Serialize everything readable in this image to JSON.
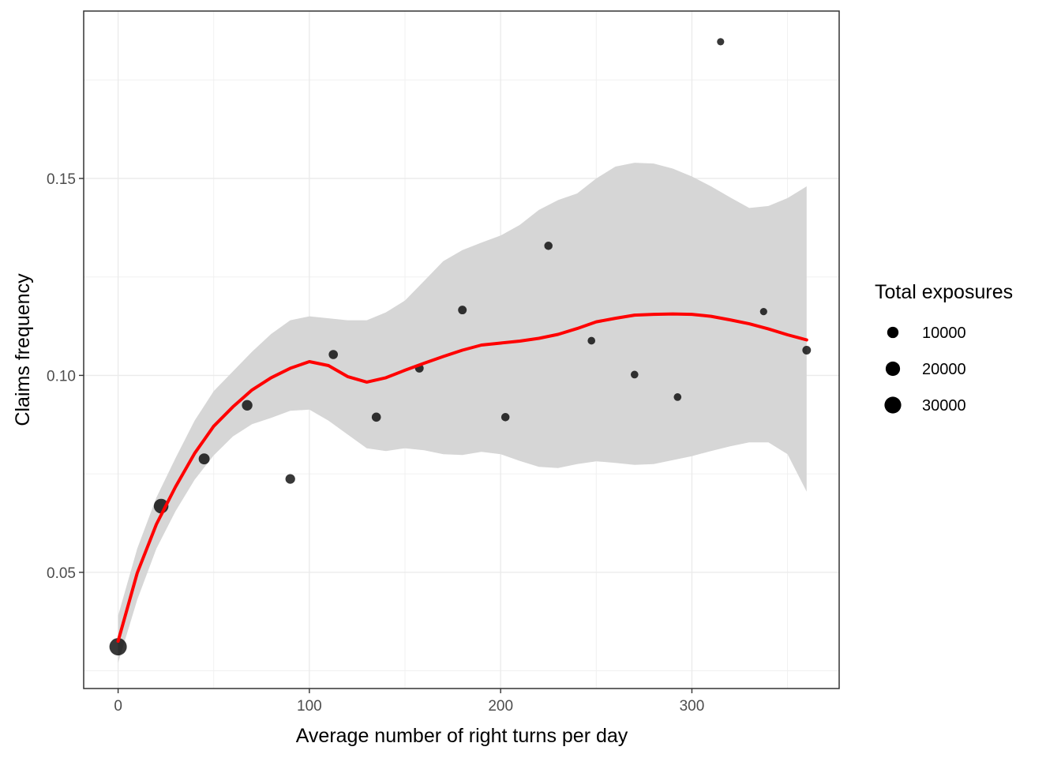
{
  "chart_data": {
    "type": "scatter",
    "title": "",
    "xlabel": "Average number of right turns per day",
    "ylabel": "Claims frequency",
    "xlim": [
      -18,
      377
    ],
    "ylim": [
      0.0205,
      0.1925
    ],
    "x_ticks": [
      0,
      100,
      200,
      300
    ],
    "x_tick_labels": [
      "0",
      "100",
      "200",
      "300"
    ],
    "y_ticks": [
      0.05,
      0.1,
      0.15
    ],
    "y_tick_labels": [
      "0.05",
      "0.10",
      "0.15"
    ],
    "grid": true,
    "legend": {
      "title": "Total exposures",
      "position": "right",
      "entries": [
        {
          "label": "10000",
          "size": 10000
        },
        {
          "label": "20000",
          "size": 20000
        },
        {
          "label": "30000",
          "size": 30000
        }
      ]
    },
    "points": [
      {
        "x": 0,
        "y": 0.0311,
        "exposure": 33000
      },
      {
        "x": 22.5,
        "y": 0.0668,
        "exposure": 21000
      },
      {
        "x": 45,
        "y": 0.0788,
        "exposure": 9000
      },
      {
        "x": 67.5,
        "y": 0.0924,
        "exposure": 8000
      },
      {
        "x": 90,
        "y": 0.0737,
        "exposure": 6000
      },
      {
        "x": 112.5,
        "y": 0.1053,
        "exposure": 5000
      },
      {
        "x": 135,
        "y": 0.0894,
        "exposure": 5000
      },
      {
        "x": 157.5,
        "y": 0.1018,
        "exposure": 4000
      },
      {
        "x": 180,
        "y": 0.1166,
        "exposure": 4000
      },
      {
        "x": 202.5,
        "y": 0.0894,
        "exposure": 3500
      },
      {
        "x": 225,
        "y": 0.1329,
        "exposure": 3500
      },
      {
        "x": 247.5,
        "y": 0.1088,
        "exposure": 2500
      },
      {
        "x": 270,
        "y": 0.1002,
        "exposure": 2500
      },
      {
        "x": 292.5,
        "y": 0.0945,
        "exposure": 2500
      },
      {
        "x": 315,
        "y": 0.1847,
        "exposure": 2000
      },
      {
        "x": 337.5,
        "y": 0.1162,
        "exposure": 2000
      },
      {
        "x": 360,
        "y": 0.1064,
        "exposure": 4000
      }
    ],
    "smooth": {
      "color": "#ff0000",
      "x": [
        0,
        10,
        20,
        30,
        40,
        50,
        60,
        70,
        80,
        90,
        100,
        110,
        120,
        130,
        140,
        150,
        160,
        170,
        180,
        190,
        200,
        210,
        220,
        230,
        240,
        250,
        260,
        270,
        280,
        290,
        300,
        310,
        320,
        330,
        340,
        350,
        360
      ],
      "y": [
        0.0325,
        0.0498,
        0.0622,
        0.0717,
        0.0802,
        0.0871,
        0.092,
        0.0963,
        0.0994,
        0.1018,
        0.1035,
        0.1025,
        0.0997,
        0.0983,
        0.0994,
        0.1013,
        0.1031,
        0.1048,
        0.1064,
        0.1077,
        0.1082,
        0.1087,
        0.1094,
        0.1104,
        0.1119,
        0.1136,
        0.1145,
        0.1153,
        0.1155,
        0.1156,
        0.1155,
        0.115,
        0.1141,
        0.1131,
        0.1118,
        0.1103,
        0.109
      ],
      "lower": [
        0.027,
        0.043,
        0.056,
        0.0655,
        0.0735,
        0.0797,
        0.0845,
        0.0876,
        0.0892,
        0.091,
        0.0913,
        0.0885,
        0.085,
        0.0815,
        0.0808,
        0.0815,
        0.081,
        0.08,
        0.0798,
        0.0806,
        0.08,
        0.0783,
        0.0768,
        0.0765,
        0.0775,
        0.0782,
        0.0778,
        0.0773,
        0.0775,
        0.0785,
        0.0795,
        0.0808,
        0.082,
        0.083,
        0.083,
        0.08,
        0.0705
      ],
      "upper": [
        0.039,
        0.056,
        0.069,
        0.079,
        0.0885,
        0.096,
        0.101,
        0.106,
        0.1105,
        0.114,
        0.115,
        0.1145,
        0.114,
        0.114,
        0.116,
        0.119,
        0.124,
        0.129,
        0.1318,
        0.1337,
        0.1355,
        0.1382,
        0.142,
        0.1445,
        0.1462,
        0.15,
        0.153,
        0.154,
        0.1538,
        0.1525,
        0.1505,
        0.148,
        0.1452,
        0.1425,
        0.143,
        0.145,
        0.148
      ],
      "band_color": "#d6d6d6"
    }
  }
}
